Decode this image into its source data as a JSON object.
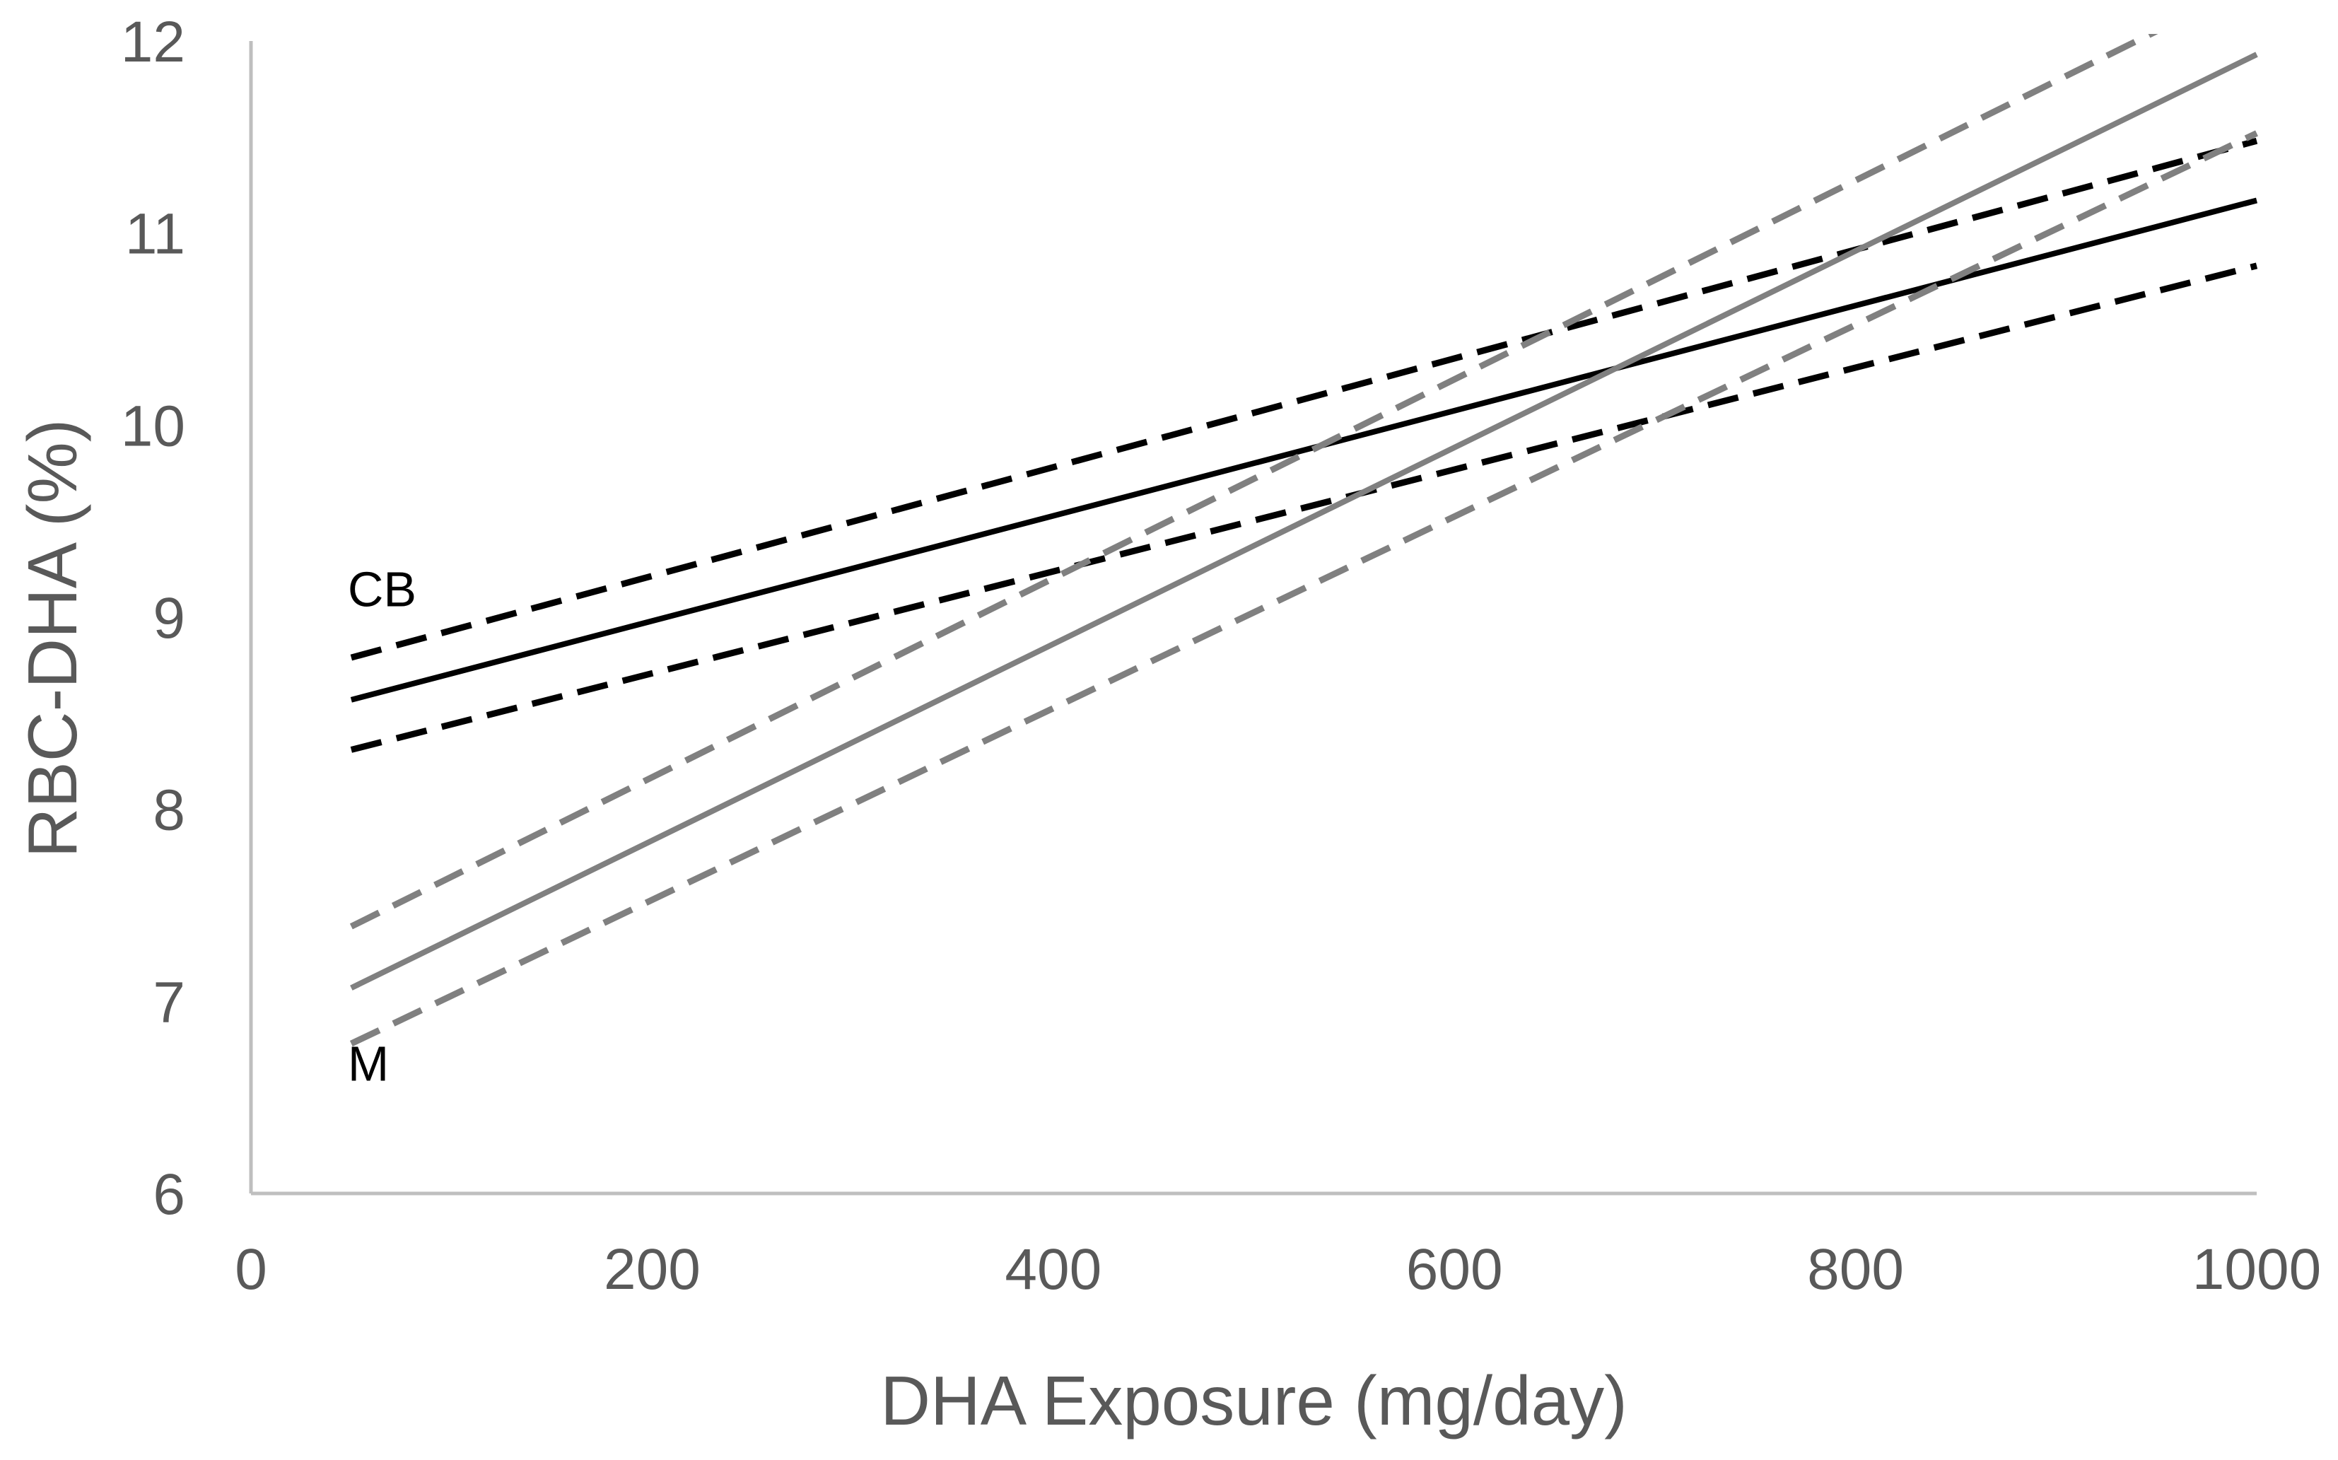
{
  "chart_data": {
    "type": "line",
    "title": "",
    "xlabel": "DHA Exposure (mg/day)",
    "ylabel": "RBC-DHA (%)",
    "xlim": [
      0,
      1000
    ],
    "ylim": [
      6,
      12
    ],
    "x_ticks": [
      0,
      200,
      400,
      600,
      800,
      1000
    ],
    "y_ticks": [
      6,
      7,
      8,
      9,
      10,
      11,
      12
    ],
    "grid": false,
    "legend": "none",
    "series": [
      {
        "key": "cb-fit",
        "color": "#000000",
        "dash": "solid",
        "x": [
          50,
          1000
        ],
        "y": [
          8.57,
          11.17
        ]
      },
      {
        "key": "cb-upper",
        "color": "#000000",
        "dash": "dashed",
        "x": [
          50,
          1000
        ],
        "y": [
          8.79,
          11.48
        ]
      },
      {
        "key": "cb-lower",
        "color": "#000000",
        "dash": "dashed",
        "x": [
          50,
          1000
        ],
        "y": [
          8.31,
          10.83
        ]
      },
      {
        "key": "m-fit",
        "color": "#808080",
        "dash": "solid",
        "x": [
          50,
          1000
        ],
        "y": [
          7.07,
          11.93
        ]
      },
      {
        "key": "m-upper",
        "color": "#808080",
        "dash": "dashed",
        "x": [
          50,
          1000
        ],
        "y": [
          7.39,
          12.31
        ]
      },
      {
        "key": "m-lower",
        "color": "#808080",
        "dash": "dashed",
        "x": [
          50,
          1000
        ],
        "y": [
          6.78,
          11.52
        ]
      }
    ],
    "annotations": [
      {
        "key": "cb",
        "text": "CB",
        "x": 50,
        "y": 9.15
      },
      {
        "key": "m",
        "text": "M",
        "x": 50,
        "y": 6.68
      }
    ],
    "colors": {
      "axis": "#bfbfbf",
      "tick_text": "#595959",
      "cb": "#000000",
      "m": "#808080"
    }
  }
}
